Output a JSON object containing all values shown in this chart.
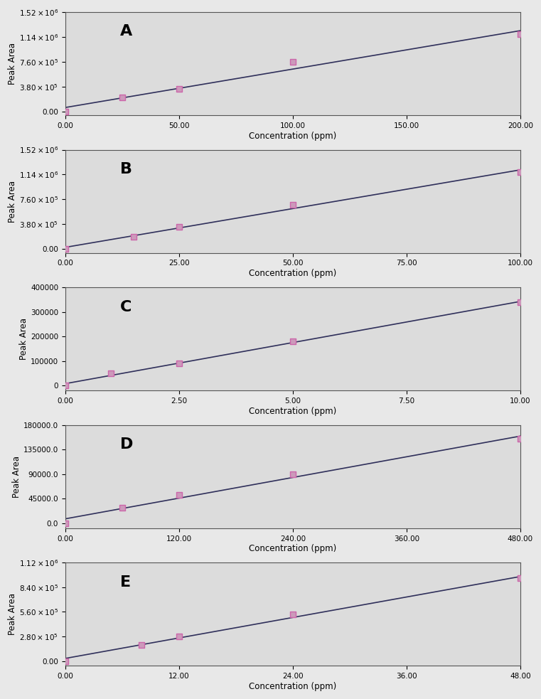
{
  "panels": [
    {
      "label": "A",
      "x_data": [
        0,
        25,
        50,
        100,
        200
      ],
      "y_data": [
        0,
        215000,
        350000,
        760000,
        1180000
      ],
      "xlim": [
        0,
        200
      ],
      "ylim": [
        -60000,
        1520000
      ],
      "xticks": [
        0,
        50,
        100,
        150,
        200
      ],
      "xtick_labels": [
        "0.00",
        "50.00",
        "100.00",
        "150.00",
        "200.00"
      ],
      "yticks": [
        0,
        380000,
        760000,
        1140000,
        1520000
      ],
      "ytick_labels": [
        "0.00",
        "3.80×10⁵",
        "7.60×10⁵",
        "1.14×10⁶",
        "1.52×10⁶"
      ],
      "xlabel": "Concentration (ppm)",
      "ylabel": "Peak Area"
    },
    {
      "label": "B",
      "x_data": [
        0,
        15,
        25,
        50,
        100
      ],
      "y_data": [
        0,
        185000,
        340000,
        680000,
        1180000
      ],
      "xlim": [
        0,
        100
      ],
      "ylim": [
        -60000,
        1520000
      ],
      "xticks": [
        0,
        25,
        50,
        75,
        100
      ],
      "xtick_labels": [
        "0.00",
        "25.00",
        "50.00",
        "75.00",
        "100.00"
      ],
      "yticks": [
        0,
        380000,
        760000,
        1140000,
        1520000
      ],
      "ytick_labels": [
        "0.00",
        "3.80×10⁵",
        "7.60×10⁵",
        "1.14×10⁶",
        "1.52×10⁶"
      ],
      "xlabel": "Concentration (ppm)",
      "ylabel": "Peak Area"
    },
    {
      "label": "C",
      "x_data": [
        0,
        1,
        2.5,
        5,
        10
      ],
      "y_data": [
        0,
        50000,
        90000,
        180000,
        340000
      ],
      "xlim": [
        0,
        10
      ],
      "ylim": [
        -20000,
        400000
      ],
      "xticks": [
        0,
        2.5,
        5,
        7.5,
        10
      ],
      "xtick_labels": [
        "0.00",
        "2.50",
        "5.00",
        "7.50",
        "10.00"
      ],
      "yticks": [
        0,
        100000,
        200000,
        300000,
        400000
      ],
      "ytick_labels": [
        "0",
        "100000",
        "200000",
        "300000",
        "400000"
      ],
      "xlabel": "Concentration (ppm)",
      "ylabel": "Peak Area"
    },
    {
      "label": "D",
      "x_data": [
        0,
        60,
        120,
        240,
        480
      ],
      "y_data": [
        0,
        28000,
        52000,
        90000,
        155000
      ],
      "xlim": [
        0,
        480
      ],
      "ylim": [
        -9000,
        180000
      ],
      "xticks": [
        0,
        120,
        240,
        360,
        480
      ],
      "xtick_labels": [
        "0.00",
        "120.00",
        "240.00",
        "360.00",
        "480.00"
      ],
      "yticks": [
        0,
        45000,
        90000,
        135000,
        180000
      ],
      "ytick_labels": [
        "0.0",
        "45000.0",
        "90000.0",
        "135000.0",
        "180000.0"
      ],
      "xlabel": "Concentration (ppm)",
      "ylabel": "Peak Area"
    },
    {
      "label": "E",
      "x_data": [
        0,
        8,
        12,
        24,
        48
      ],
      "y_data": [
        0,
        185000,
        280000,
        530000,
        940000
      ],
      "xlim": [
        0,
        48
      ],
      "ylim": [
        -55000,
        1120000
      ],
      "xticks": [
        0,
        12,
        24,
        36,
        48
      ],
      "xtick_labels": [
        "0.00",
        "12.00",
        "24.00",
        "36.00",
        "48.00"
      ],
      "yticks": [
        0,
        280000,
        560000,
        840000,
        1120000
      ],
      "ytick_labels": [
        "0.00",
        "2.80×10⁵",
        "5.60×10⁵",
        "8.40×10⁵",
        "1.12×10⁶"
      ],
      "xlabel": "Concentration (ppm)",
      "ylabel": "Peak Area"
    }
  ],
  "bg_color": "#e8e8e8",
  "plot_bg_color": "#dcdcdc",
  "line_color": "#2f2f5a",
  "marker_color": "#cc99bb",
  "marker_edge_color": "#cc66aa"
}
